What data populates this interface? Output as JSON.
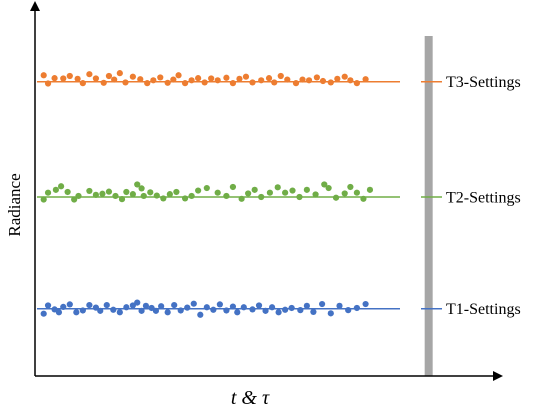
{
  "chart_data": {
    "type": "scatter",
    "title": "",
    "xlabel": "t & τ",
    "ylabel": "Radiance",
    "grid": false,
    "legend": "right, inline at each reference line",
    "series": [
      {
        "name": "T3-Settings",
        "color": "#ED7D31",
        "reference_level": 0.822,
        "points": [
          [
            0.02,
            0.84
          ],
          [
            0.03,
            0.817
          ],
          [
            0.045,
            0.832
          ],
          [
            0.065,
            0.831
          ],
          [
            0.08,
            0.838
          ],
          [
            0.098,
            0.83
          ],
          [
            0.11,
            0.818
          ],
          [
            0.125,
            0.843
          ],
          [
            0.14,
            0.831
          ],
          [
            0.158,
            0.819
          ],
          [
            0.17,
            0.838
          ],
          [
            0.182,
            0.828
          ],
          [
            0.195,
            0.846
          ],
          [
            0.208,
            0.82
          ],
          [
            0.225,
            0.836
          ],
          [
            0.242,
            0.829
          ],
          [
            0.258,
            0.818
          ],
          [
            0.272,
            0.826
          ],
          [
            0.288,
            0.834
          ],
          [
            0.305,
            0.819
          ],
          [
            0.318,
            0.828
          ],
          [
            0.33,
            0.84
          ],
          [
            0.345,
            0.818
          ],
          [
            0.36,
            0.826
          ],
          [
            0.375,
            0.832
          ],
          [
            0.39,
            0.82
          ],
          [
            0.405,
            0.831
          ],
          [
            0.42,
            0.826
          ],
          [
            0.44,
            0.833
          ],
          [
            0.455,
            0.818
          ],
          [
            0.47,
            0.83
          ],
          [
            0.485,
            0.836
          ],
          [
            0.5,
            0.82
          ],
          [
            0.52,
            0.826
          ],
          [
            0.538,
            0.832
          ],
          [
            0.55,
            0.82
          ],
          [
            0.565,
            0.838
          ],
          [
            0.58,
            0.828
          ],
          [
            0.6,
            0.818
          ],
          [
            0.615,
            0.828
          ],
          [
            0.63,
            0.826
          ],
          [
            0.648,
            0.834
          ],
          [
            0.662,
            0.824
          ],
          [
            0.68,
            0.82
          ],
          [
            0.695,
            0.83
          ],
          [
            0.712,
            0.836
          ],
          [
            0.725,
            0.826
          ],
          [
            0.74,
            0.818
          ],
          [
            0.76,
            0.829
          ]
        ]
      },
      {
        "name": "T2-Settings",
        "color": "#70AD47",
        "reference_level": 0.5,
        "points": [
          [
            0.02,
            0.493
          ],
          [
            0.03,
            0.512
          ],
          [
            0.048,
            0.52
          ],
          [
            0.06,
            0.53
          ],
          [
            0.075,
            0.514
          ],
          [
            0.09,
            0.493
          ],
          [
            0.1,
            0.503
          ],
          [
            0.125,
            0.517
          ],
          [
            0.14,
            0.506
          ],
          [
            0.155,
            0.509
          ],
          [
            0.17,
            0.515
          ],
          [
            0.185,
            0.503
          ],
          [
            0.2,
            0.494
          ],
          [
            0.21,
            0.514
          ],
          [
            0.225,
            0.508
          ],
          [
            0.235,
            0.535
          ],
          [
            0.245,
            0.524
          ],
          [
            0.25,
            0.503
          ],
          [
            0.265,
            0.513
          ],
          [
            0.28,
            0.504
          ],
          [
            0.295,
            0.496
          ],
          [
            0.31,
            0.508
          ],
          [
            0.325,
            0.514
          ],
          [
            0.345,
            0.496
          ],
          [
            0.36,
            0.503
          ],
          [
            0.375,
            0.518
          ],
          [
            0.395,
            0.525
          ],
          [
            0.42,
            0.512
          ],
          [
            0.44,
            0.503
          ],
          [
            0.455,
            0.528
          ],
          [
            0.475,
            0.495
          ],
          [
            0.49,
            0.51
          ],
          [
            0.505,
            0.52
          ],
          [
            0.52,
            0.5
          ],
          [
            0.54,
            0.512
          ],
          [
            0.558,
            0.527
          ],
          [
            0.575,
            0.512
          ],
          [
            0.592,
            0.518
          ],
          [
            0.608,
            0.5
          ],
          [
            0.625,
            0.52
          ],
          [
            0.645,
            0.507
          ],
          [
            0.665,
            0.535
          ],
          [
            0.675,
            0.525
          ],
          [
            0.692,
            0.498
          ],
          [
            0.712,
            0.51
          ],
          [
            0.725,
            0.528
          ],
          [
            0.74,
            0.512
          ],
          [
            0.755,
            0.495
          ],
          [
            0.77,
            0.52
          ]
        ]
      },
      {
        "name": "T1-Settings",
        "color": "#4472C4",
        "reference_level": 0.188,
        "points": [
          [
            0.02,
            0.174
          ],
          [
            0.03,
            0.197
          ],
          [
            0.045,
            0.186
          ],
          [
            0.055,
            0.178
          ],
          [
            0.065,
            0.193
          ],
          [
            0.08,
            0.2
          ],
          [
            0.095,
            0.178
          ],
          [
            0.11,
            0.183
          ],
          [
            0.125,
            0.198
          ],
          [
            0.14,
            0.191
          ],
          [
            0.15,
            0.182
          ],
          [
            0.165,
            0.198
          ],
          [
            0.18,
            0.185
          ],
          [
            0.195,
            0.178
          ],
          [
            0.21,
            0.192
          ],
          [
            0.225,
            0.197
          ],
          [
            0.235,
            0.205
          ],
          [
            0.245,
            0.182
          ],
          [
            0.255,
            0.196
          ],
          [
            0.268,
            0.19
          ],
          [
            0.278,
            0.182
          ],
          [
            0.29,
            0.195
          ],
          [
            0.305,
            0.178
          ],
          [
            0.32,
            0.198
          ],
          [
            0.335,
            0.183
          ],
          [
            0.35,
            0.191
          ],
          [
            0.365,
            0.202
          ],
          [
            0.38,
            0.171
          ],
          [
            0.395,
            0.192
          ],
          [
            0.41,
            0.185
          ],
          [
            0.425,
            0.2
          ],
          [
            0.44,
            0.183
          ],
          [
            0.455,
            0.194
          ],
          [
            0.465,
            0.178
          ],
          [
            0.48,
            0.192
          ],
          [
            0.5,
            0.186
          ],
          [
            0.515,
            0.197
          ],
          [
            0.53,
            0.182
          ],
          [
            0.545,
            0.192
          ],
          [
            0.56,
            0.178
          ],
          [
            0.575,
            0.185
          ],
          [
            0.59,
            0.19
          ],
          [
            0.61,
            0.184
          ],
          [
            0.625,
            0.196
          ],
          [
            0.64,
            0.179
          ],
          [
            0.66,
            0.201
          ],
          [
            0.68,
            0.175
          ],
          [
            0.7,
            0.196
          ],
          [
            0.72,
            0.184
          ],
          [
            0.74,
            0.19
          ],
          [
            0.76,
            0.201
          ]
        ]
      }
    ],
    "xlim": [
      0,
      1
    ],
    "ylim": [
      0,
      1
    ],
    "annotations": [
      {
        "type": "vertical-band",
        "at": 0.905,
        "color": "#A6A6A6"
      }
    ]
  }
}
